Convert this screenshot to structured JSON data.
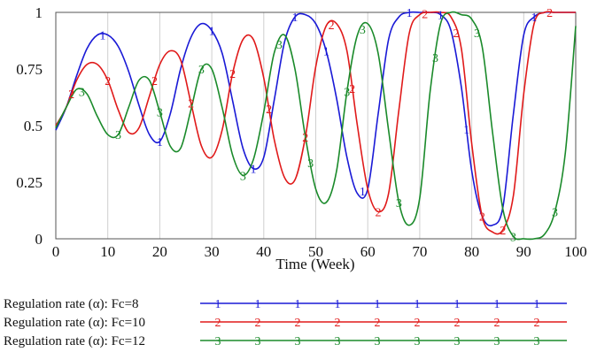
{
  "chart_data": {
    "type": "line",
    "title": "",
    "xlabel": "Time (Week)",
    "ylabel": "",
    "xlim": [
      0,
      100
    ],
    "ylim": [
      0,
      1
    ],
    "xticks": [
      0,
      10,
      20,
      30,
      40,
      50,
      60,
      70,
      80,
      90,
      100
    ],
    "yticks": [
      0,
      0.25,
      0.5,
      0.75,
      1
    ],
    "ytick_labels": [
      "0",
      "0.25",
      "0.5",
      "0.75",
      "1"
    ],
    "grid": "vertical",
    "legend_position": "bottom",
    "series": [
      {
        "name": "Regulation rate (α): Fc=8",
        "marker": "1",
        "color": "#1a1ad6",
        "x": [
          0,
          2,
          4,
          6,
          8,
          10,
          12,
          14,
          16,
          18,
          20,
          22,
          24,
          26,
          28,
          30,
          32,
          34,
          36,
          38,
          40,
          42,
          44,
          46,
          48,
          50,
          52,
          54,
          56,
          58,
          60,
          62,
          64,
          66,
          68,
          70,
          72,
          74,
          76,
          78,
          80,
          82,
          84,
          86,
          88,
          90,
          92,
          94,
          96,
          98,
          100
        ],
        "y": [
          0.48,
          0.58,
          0.72,
          0.84,
          0.9,
          0.9,
          0.85,
          0.74,
          0.59,
          0.46,
          0.43,
          0.55,
          0.75,
          0.89,
          0.95,
          0.92,
          0.82,
          0.61,
          0.4,
          0.31,
          0.36,
          0.61,
          0.87,
          0.98,
          0.99,
          0.95,
          0.83,
          0.62,
          0.36,
          0.2,
          0.22,
          0.55,
          0.88,
          0.98,
          1.0,
          1.0,
          1.0,
          0.99,
          0.92,
          0.67,
          0.3,
          0.1,
          0.06,
          0.14,
          0.55,
          0.9,
          0.98,
          1.0,
          1.0,
          1.0,
          1.0
        ]
      },
      {
        "name": "Regulation rate (α): Fc=10",
        "marker": "2",
        "color": "#e01a1a",
        "x": [
          0,
          2,
          4,
          6,
          8,
          10,
          12,
          14,
          16,
          18,
          20,
          22,
          24,
          26,
          28,
          30,
          32,
          34,
          36,
          38,
          40,
          42,
          44,
          46,
          48,
          50,
          52,
          54,
          56,
          58,
          60,
          62,
          64,
          66,
          68,
          70,
          72,
          74,
          76,
          78,
          80,
          82,
          84,
          86,
          88,
          90,
          92,
          94,
          96,
          98,
          100
        ],
        "y": [
          0.5,
          0.58,
          0.7,
          0.77,
          0.77,
          0.7,
          0.57,
          0.47,
          0.49,
          0.63,
          0.77,
          0.83,
          0.79,
          0.6,
          0.41,
          0.36,
          0.48,
          0.73,
          0.88,
          0.88,
          0.71,
          0.44,
          0.27,
          0.26,
          0.45,
          0.76,
          0.94,
          0.95,
          0.83,
          0.5,
          0.22,
          0.12,
          0.2,
          0.57,
          0.91,
          0.99,
          1.0,
          1.0,
          0.98,
          0.84,
          0.42,
          0.1,
          0.03,
          0.04,
          0.19,
          0.64,
          0.95,
          1.0,
          1.0,
          1.0,
          1.0
        ]
      },
      {
        "name": "Regulation rate (α): Fc=12",
        "marker": "3",
        "color": "#1a8a2a",
        "x": [
          0,
          2,
          4,
          6,
          8,
          10,
          12,
          14,
          16,
          18,
          20,
          22,
          24,
          26,
          28,
          30,
          32,
          34,
          36,
          38,
          40,
          42,
          44,
          46,
          48,
          50,
          52,
          54,
          56,
          58,
          60,
          62,
          64,
          66,
          68,
          70,
          72,
          74,
          76,
          78,
          80,
          82,
          84,
          86,
          88,
          90,
          92,
          94,
          96,
          98,
          100
        ],
        "y": [
          0.49,
          0.58,
          0.66,
          0.64,
          0.54,
          0.46,
          0.46,
          0.58,
          0.7,
          0.7,
          0.56,
          0.41,
          0.4,
          0.57,
          0.75,
          0.75,
          0.58,
          0.37,
          0.28,
          0.35,
          0.56,
          0.82,
          0.9,
          0.75,
          0.45,
          0.22,
          0.16,
          0.3,
          0.65,
          0.9,
          0.95,
          0.82,
          0.48,
          0.16,
          0.06,
          0.18,
          0.65,
          0.95,
          1.0,
          0.99,
          0.97,
          0.85,
          0.47,
          0.13,
          0.01,
          0.0,
          0.0,
          0.02,
          0.12,
          0.38,
          0.94
        ]
      }
    ],
    "marker_x": {
      "1": [
        9,
        20,
        30,
        38,
        46,
        52,
        59,
        68,
        74,
        79,
        92
      ],
      "2": [
        3,
        10,
        19,
        26,
        34,
        41,
        48,
        53,
        57,
        62,
        71,
        77,
        82,
        86,
        95
      ],
      "3": [
        5,
        12,
        20,
        28,
        36,
        43,
        49,
        56,
        59,
        66,
        73,
        81,
        88,
        96
      ]
    }
  }
}
